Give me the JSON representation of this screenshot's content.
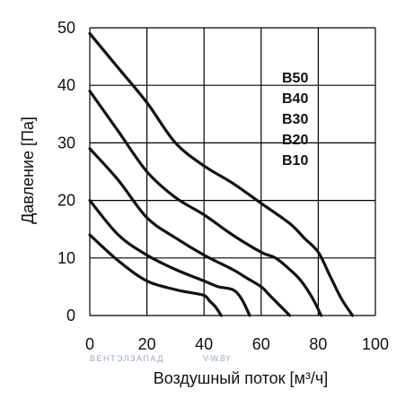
{
  "chart_data": {
    "type": "line",
    "xlabel": "Воздушный поток [м³/ч]",
    "ylabel": "Давление [Па]",
    "xlim": [
      0,
      100
    ],
    "ylim": [
      0,
      50
    ],
    "xticks": [
      "0",
      "20",
      "40",
      "60",
      "80",
      "100"
    ],
    "yticks": [
      "0",
      "10",
      "20",
      "30",
      "40",
      "50"
    ],
    "grid": true,
    "legend_position": "upper-right inside plot",
    "series": [
      {
        "name": "B50",
        "x": [
          0,
          10,
          20,
          30,
          40,
          50,
          60,
          70,
          75,
          80,
          84,
          88,
          92
        ],
        "y": [
          49,
          43,
          37,
          30,
          26,
          23,
          19.5,
          16,
          13.5,
          11,
          7,
          3,
          0
        ]
      },
      {
        "name": "B40",
        "x": [
          0,
          10,
          20,
          30,
          40,
          50,
          60,
          65,
          70,
          74,
          78,
          81
        ],
        "y": [
          39,
          32,
          25,
          20.5,
          17.5,
          14,
          11,
          10,
          8,
          6,
          3,
          0
        ]
      },
      {
        "name": "B30",
        "x": [
          0,
          10,
          20,
          30,
          40,
          50,
          55,
          60,
          63,
          66,
          70
        ],
        "y": [
          29,
          23.5,
          17,
          13.5,
          10.5,
          8,
          6.5,
          5,
          3.5,
          2,
          0
        ]
      },
      {
        "name": "B20",
        "x": [
          0,
          10,
          20,
          30,
          40,
          45,
          50,
          53,
          56
        ],
        "y": [
          20,
          14,
          10.5,
          8,
          6,
          5,
          4.5,
          3,
          0
        ]
      },
      {
        "name": "B10",
        "x": [
          0,
          10,
          20,
          30,
          35,
          40,
          42,
          44,
          46
        ],
        "y": [
          14,
          9.5,
          6,
          4.5,
          4,
          3.5,
          2.5,
          1.5,
          0
        ]
      }
    ]
  },
  "watermark": {
    "brand": "ВЕНТЭЛЗАПАД",
    "site": "V-W.BY"
  }
}
